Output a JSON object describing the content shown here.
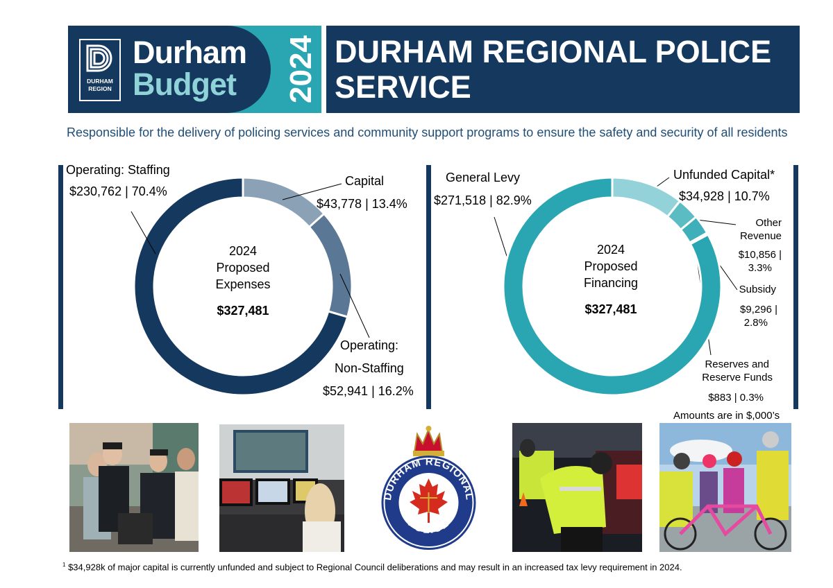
{
  "header": {
    "logo_text_line1": "DURHAM",
    "logo_text_line2": "REGION",
    "brand_line1": "Durham",
    "brand_line2": "Budget",
    "year": "2024",
    "title": "DURHAM REGIONAL POLICE SERVICE"
  },
  "mission": "Responsible for the delivery of policing services and community support programs to ensure the safety and security of all residents",
  "expenses": {
    "center_line1": "2024",
    "center_line2": "Proposed",
    "center_line3": "Expenses",
    "total": "$327,481",
    "labels": {
      "staffing_name": "Operating: Staffing",
      "staffing_value": "$230,762 | 70.4%",
      "capital_name": "Capital",
      "capital_value": "$43,778 | 13.4%",
      "nonstaff_name1": "Operating:",
      "nonstaff_name2": "Non-Staffing",
      "nonstaff_value": "$52,941 | 16.2%"
    }
  },
  "financing": {
    "center_line1": "2024",
    "center_line2": "Proposed",
    "center_line3": "Financing",
    "total": "$327,481",
    "labels": {
      "levy_name": "General Levy",
      "levy_value": "$271,518 | 82.9%",
      "unfunded_name": "Unfunded Capital*",
      "unfunded_value": "$34,928 | 10.7%",
      "other_name1": "Other",
      "other_name2": "Revenue",
      "other_value1": "$10,856 |",
      "other_value2": "3.3%",
      "subsidy_name": "Subsidy",
      "subsidy_value1": "$9,296 |",
      "subsidy_value2": "2.8%",
      "reserves_name1": "Reserves and",
      "reserves_name2": "Reserve Funds",
      "reserves_value": "$883 | 0.3%"
    }
  },
  "amounts_note": "Amounts are in $,000’s",
  "crest": {
    "ring_top": "DURHAM REGIONAL",
    "ring_bottom": "POLICE"
  },
  "footnote_marker": "1",
  "footnote": "$34,928k of major capital is currently unfunded and subject to Regional Council deliberations and may result in an increased tax levy requirement in 2024.",
  "colors": {
    "navy": "#15385e",
    "teal": "#2aa6b2",
    "light_teal": "#8fd3d9",
    "mission_text": "#1e4d78"
  },
  "chart_data": [
    {
      "type": "pie",
      "categories": [
        "Capital",
        "Operating: Non-Staffing",
        "Operating: Staffing"
      ],
      "values": [
        43778,
        52941,
        230762
      ],
      "percent": [
        13.4,
        16.2,
        70.4
      ],
      "colors": [
        "#8aa1b6",
        "#5a7895",
        "#15385e"
      ]
    },
    {
      "type": "pie",
      "categories": [
        "Unfunded Capital*",
        "Other Revenue",
        "Subsidy",
        "Reserves and Reserve Funds",
        "General Levy"
      ],
      "values": [
        34928,
        10856,
        9296,
        883,
        271518
      ],
      "percent": [
        10.7,
        3.3,
        2.8,
        0.3,
        82.9
      ],
      "colors": [
        "#94d2d9",
        "#5cbcc4",
        "#3fb0ba",
        "#2aa6b2",
        "#2aa6b2"
      ]
    }
  ]
}
